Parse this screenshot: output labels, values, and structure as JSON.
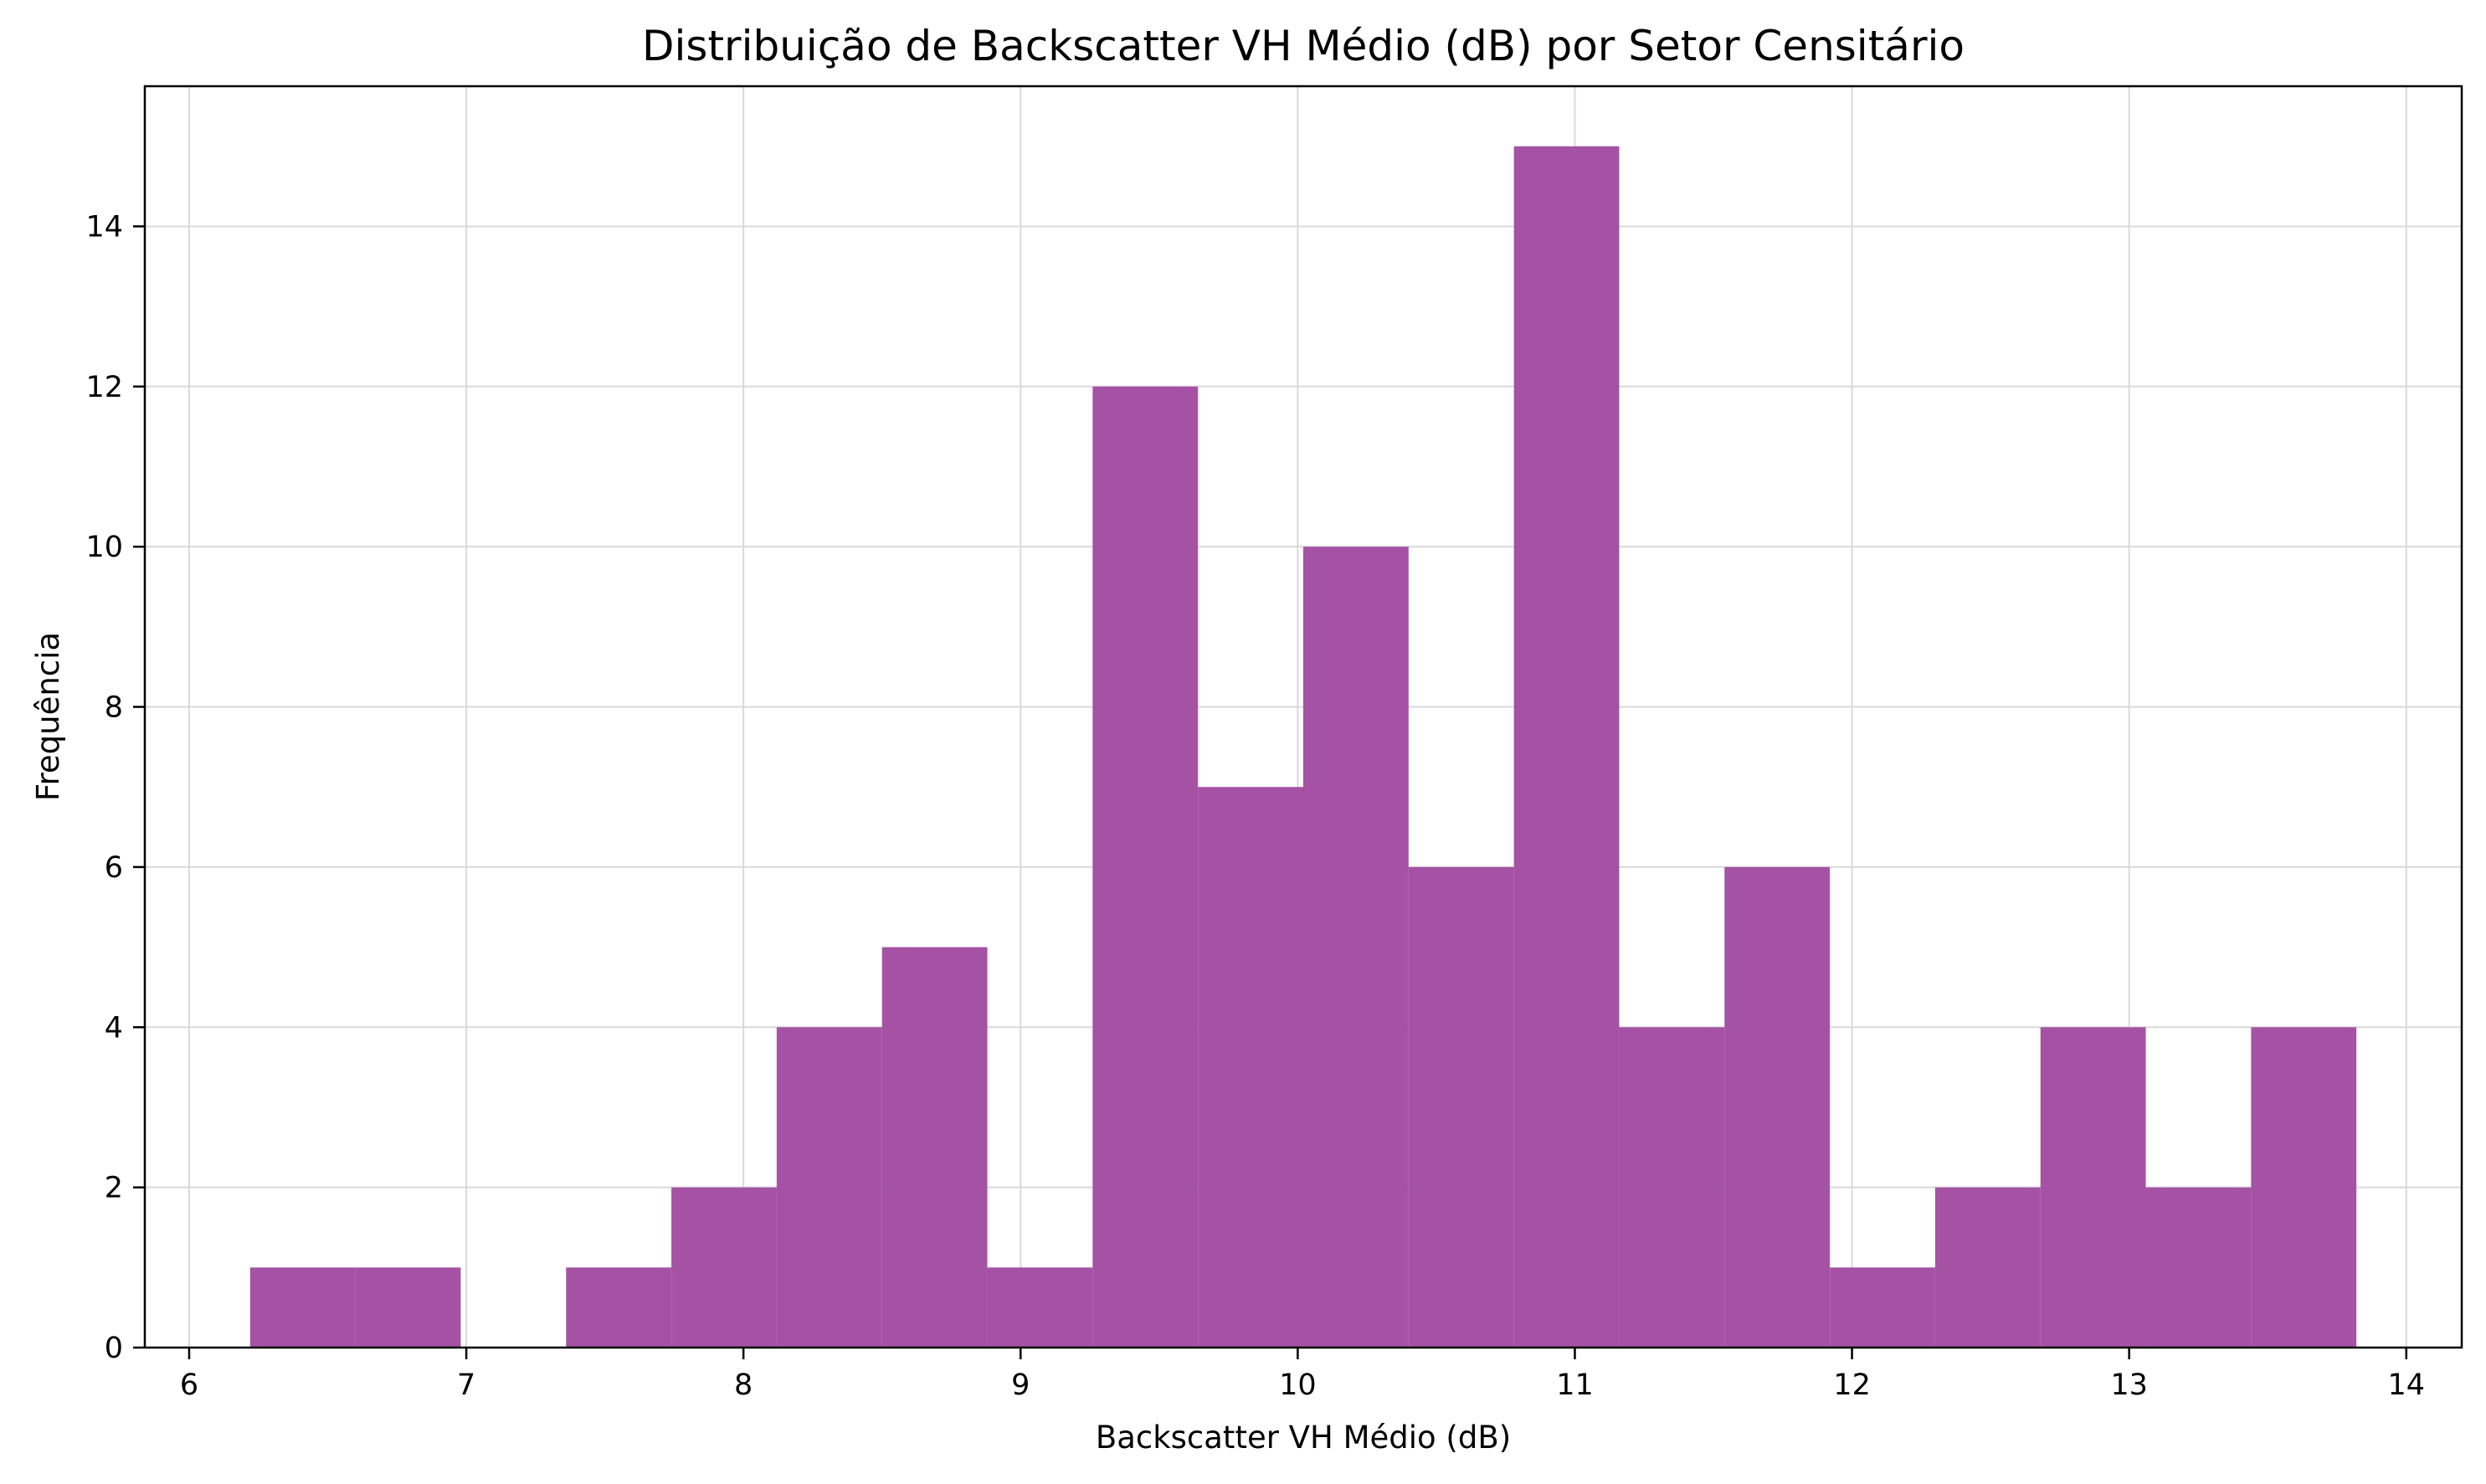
{
  "chart_data": {
    "type": "bar",
    "title": "Distribuição de Backscatter VH Médio (dB) por Setor Censitário",
    "xlabel": "Backscatter VH Médio (dB)",
    "ylabel": "Frequência",
    "bin_edges": [
      6.22,
      6.6,
      6.98,
      7.36,
      7.74,
      8.12,
      8.5,
      8.88,
      9.26,
      9.64,
      10.02,
      10.4,
      10.78,
      11.16,
      11.54,
      11.92,
      12.3,
      12.68,
      13.06,
      13.44,
      13.82
    ],
    "values": [
      1,
      1,
      0,
      1,
      2,
      4,
      5,
      1,
      12,
      7,
      10,
      6,
      15,
      4,
      6,
      1,
      2,
      4,
      2,
      4
    ],
    "xlim": [
      5.84,
      14.2
    ],
    "ylim": [
      0,
      15.75
    ],
    "xticks": [
      6,
      7,
      8,
      9,
      10,
      11,
      12,
      13,
      14
    ],
    "yticks": [
      0,
      2,
      4,
      6,
      8,
      10,
      12,
      14
    ],
    "bar_color": "#a24ca2",
    "grid": true
  }
}
